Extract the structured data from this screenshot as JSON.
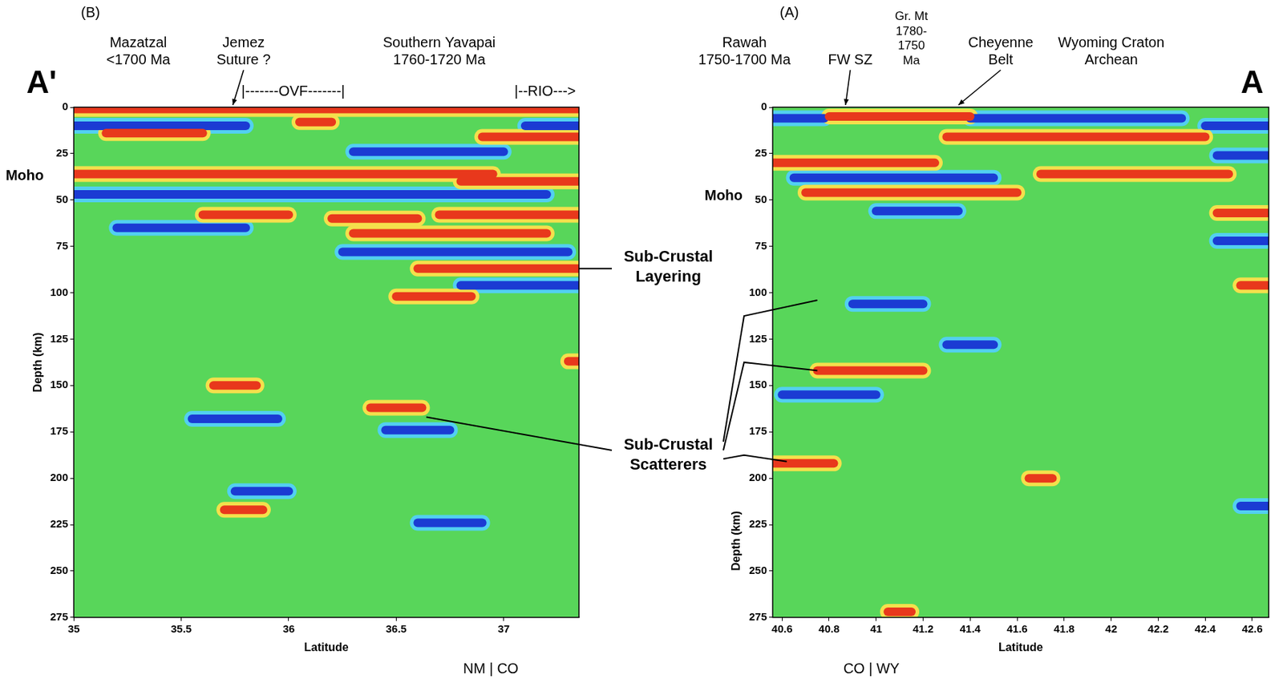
{
  "chart_data": [
    {
      "type": "line",
      "panel": "(B)",
      "corner_label": {
        "text": "A'",
        "x": 34.85
      },
      "xlabel": "Latitude",
      "ylabel": "Depth (km)",
      "xlim": [
        35,
        37.35
      ],
      "xticks": [
        35,
        35.5,
        36,
        36.5,
        37
      ],
      "ylim": [
        275,
        0
      ],
      "yticks": [
        0,
        25,
        50,
        75,
        100,
        125,
        150,
        175,
        200,
        225,
        250,
        275
      ],
      "grid": false,
      "annotations": [
        {
          "text": [
            "Mazatzal",
            "<1700 Ma"
          ],
          "x": 35.3
        },
        {
          "text": [
            "Jemez",
            "Suture ?"
          ],
          "x": 35.79,
          "arrow_to": 35.74
        },
        {
          "text": [
            "Southern Yavapai",
            "1760-1720 Ma"
          ],
          "x": 36.7
        },
        {
          "text": "|-------OVF-------|",
          "x": [
            35.78,
            36.37
          ]
        },
        {
          "text": "|--RIO--->",
          "x": [
            37.05,
            37.45
          ]
        },
        {
          "text": "Moho",
          "y": 37
        },
        {
          "text": "NM | CO",
          "x": 36.94
        }
      ],
      "series": [
        {
          "color": "#e8381c",
          "values": [
            {
              "x": [
                35.0,
                37.35
              ],
              "y": 1
            },
            {
              "x": [
                35.15,
                35.6
              ],
              "y": 14
            },
            {
              "x": [
                36.9,
                37.35
              ],
              "y": 16
            },
            {
              "x": [
                36.05,
                36.2
              ],
              "y": 8
            },
            {
              "x": [
                35.0,
                36.95
              ],
              "y": 36
            },
            {
              "x": [
                36.8,
                37.35
              ],
              "y": 40
            },
            {
              "x": [
                35.6,
                36.0
              ],
              "y": 58
            },
            {
              "x": [
                36.2,
                36.6
              ],
              "y": 60
            },
            {
              "x": [
                36.7,
                37.35
              ],
              "y": 58
            },
            {
              "x": [
                36.3,
                37.2
              ],
              "y": 68
            },
            {
              "x": [
                36.6,
                37.35
              ],
              "y": 87
            },
            {
              "x": [
                36.5,
                36.85
              ],
              "y": 102
            },
            {
              "x": [
                35.65,
                35.85
              ],
              "y": 150
            },
            {
              "x": [
                36.38,
                36.62
              ],
              "y": 162
            },
            {
              "x": [
                35.7,
                35.88
              ],
              "y": 217
            },
            {
              "x": [
                37.3,
                37.35
              ],
              "y": 137
            }
          ]
        },
        {
          "color": "#1b3bd3",
          "values": [
            {
              "x": [
                35.0,
                35.8
              ],
              "y": 10
            },
            {
              "x": [
                36.3,
                37.0
              ],
              "y": 24
            },
            {
              "x": [
                37.1,
                37.35
              ],
              "y": 10
            },
            {
              "x": [
                35.0,
                37.2
              ],
              "y": 47
            },
            {
              "x": [
                35.2,
                35.8
              ],
              "y": 65
            },
            {
              "x": [
                36.25,
                37.3
              ],
              "y": 78
            },
            {
              "x": [
                36.8,
                37.35
              ],
              "y": 96
            },
            {
              "x": [
                35.55,
                35.95
              ],
              "y": 168
            },
            {
              "x": [
                36.45,
                36.75
              ],
              "y": 174
            },
            {
              "x": [
                35.75,
                36.0
              ],
              "y": 207
            },
            {
              "x": [
                36.6,
                36.9
              ],
              "y": 224
            }
          ]
        }
      ]
    },
    {
      "type": "line",
      "panel": "(A)",
      "corner_label": {
        "text": "A",
        "x": 42.6
      },
      "xlabel": "Latitude",
      "ylabel": "Depth (km)",
      "xlim": [
        40.56,
        42.67
      ],
      "xticks": [
        40.6,
        40.8,
        41,
        41.2,
        41.4,
        41.6,
        41.8,
        42,
        42.2,
        42.4,
        42.6
      ],
      "ylim": [
        275,
        0
      ],
      "yticks": [
        0,
        25,
        50,
        75,
        100,
        125,
        150,
        175,
        200,
        225,
        250,
        275
      ],
      "grid": false,
      "annotations": [
        {
          "text": [
            "Rawah",
            "1750-1700 Ma"
          ],
          "x": 40.44
        },
        {
          "text": [
            "FW SZ"
          ],
          "x": 40.89,
          "arrow_to": 40.87
        },
        {
          "text": [
            "Gr. Mt",
            "1780-",
            "1750",
            "Ma"
          ],
          "x": 41.15
        },
        {
          "text": [
            "Cheyenne",
            "Belt"
          ],
          "x": 41.53,
          "arrow_to": 41.35
        },
        {
          "text": [
            "Wyoming Craton",
            "Archean"
          ],
          "x": 42.0
        },
        {
          "text": "Moho",
          "y": 48
        },
        {
          "text": "CO | WY",
          "x": 40.98
        }
      ],
      "series": [
        {
          "color": "#e8381c",
          "values": [
            {
              "x": [
                40.8,
                41.4
              ],
              "y": 5
            },
            {
              "x": [
                41.3,
                42.4
              ],
              "y": 16
            },
            {
              "x": [
                40.56,
                41.25
              ],
              "y": 30
            },
            {
              "x": [
                41.7,
                42.5
              ],
              "y": 36
            },
            {
              "x": [
                40.7,
                41.6
              ],
              "y": 46
            },
            {
              "x": [
                42.45,
                42.67
              ],
              "y": 57
            },
            {
              "x": [
                42.55,
                42.67
              ],
              "y": 96
            },
            {
              "x": [
                40.75,
                41.2
              ],
              "y": 142
            },
            {
              "x": [
                40.56,
                40.82
              ],
              "y": 192
            },
            {
              "x": [
                41.65,
                41.75
              ],
              "y": 200
            },
            {
              "x": [
                41.05,
                41.15
              ],
              "y": 272
            }
          ]
        },
        {
          "color": "#1b3bd3",
          "values": [
            {
              "x": [
                40.56,
                40.78
              ],
              "y": 6
            },
            {
              "x": [
                41.4,
                42.3
              ],
              "y": 6
            },
            {
              "x": [
                42.4,
                42.67
              ],
              "y": 10
            },
            {
              "x": [
                42.45,
                42.67
              ],
              "y": 26
            },
            {
              "x": [
                40.65,
                41.5
              ],
              "y": 38
            },
            {
              "x": [
                41.0,
                41.35
              ],
              "y": 56
            },
            {
              "x": [
                42.45,
                42.67
              ],
              "y": 72
            },
            {
              "x": [
                40.9,
                41.2
              ],
              "y": 106
            },
            {
              "x": [
                40.6,
                41.0
              ],
              "y": 155
            },
            {
              "x": [
                41.3,
                41.5
              ],
              "y": 128
            },
            {
              "x": [
                42.55,
                42.67
              ],
              "y": 215
            }
          ]
        }
      ]
    }
  ],
  "labels": [
    {
      "text": "Sub-Crustal Layering",
      "targets": [
        {
          "panel": "(B)",
          "x": 37.35,
          "y": 87
        }
      ]
    },
    {
      "text": "Sub-Crustal Scatterers",
      "targets": [
        {
          "panel": "(B)",
          "x": 36.64,
          "y": 167
        },
        {
          "panel": "(A)",
          "x": 40.75,
          "y": 104
        },
        {
          "panel": "(A)",
          "x": 40.75,
          "y": 142
        },
        {
          "panel": "(A)",
          "x": 40.62,
          "y": 191
        }
      ]
    }
  ]
}
